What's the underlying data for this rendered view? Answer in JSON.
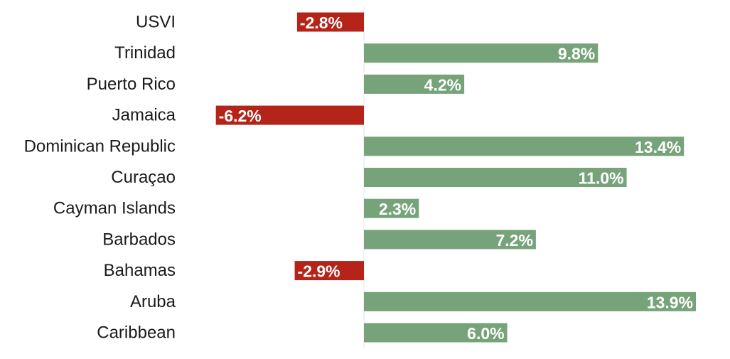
{
  "chart_data": {
    "type": "bar",
    "orientation": "horizontal",
    "categories": [
      "USVI",
      "Trinidad",
      "Puerto Rico",
      "Jamaica",
      "Dominican Republic",
      "Curaçao",
      "Cayman Islands",
      "Barbados",
      "Bahamas",
      "Aruba",
      "Caribbean"
    ],
    "values": [
      -2.8,
      9.8,
      4.2,
      -6.2,
      13.4,
      11.0,
      2.3,
      7.2,
      -2.9,
      13.9,
      6.0
    ],
    "data_labels": [
      "-2.8%",
      "9.8%",
      "4.2%",
      "-6.2%",
      "13.4%",
      "11.0%",
      "2.3%",
      "7.2%",
      "-2.9%",
      "13.9%",
      "6.0%"
    ],
    "title": "",
    "xlabel": "",
    "ylabel": "",
    "xlim": [
      -6.2,
      13.9
    ],
    "grid": false,
    "legend": "none",
    "colors": {
      "positive": "#77a37a",
      "negative": "#b52419",
      "label": "#1a1a1a",
      "data_label": "#ffffff"
    }
  }
}
